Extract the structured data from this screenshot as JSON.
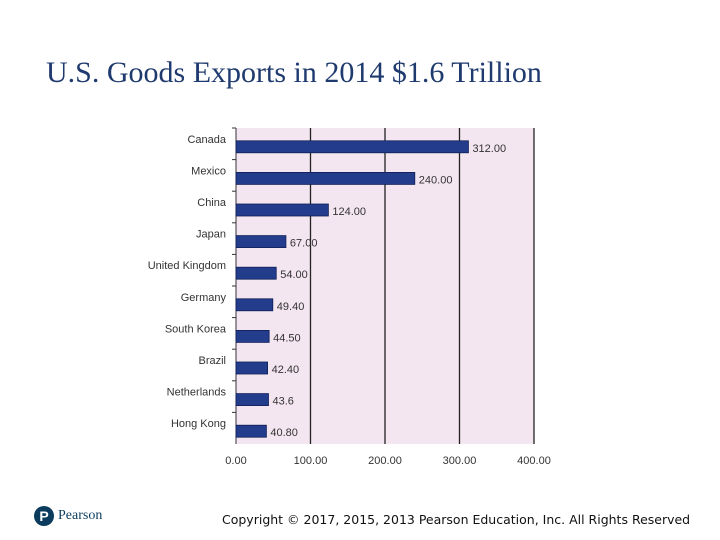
{
  "slide": {
    "title": "U.S. Goods Exports in 2014 $1.6 Trillion",
    "logo_text": "Pearson",
    "copyright": "Copyright © 2017, 2015, 2013 Pearson Education, Inc. All Rights Reserved"
  },
  "chart_data": {
    "type": "bar",
    "orientation": "horizontal",
    "categories": [
      "Canada",
      "Mexico",
      "China",
      "Japan",
      "United Kingdom",
      "Germany",
      "South Korea",
      "Brazil",
      "Netherlands",
      "Hong Kong"
    ],
    "values": [
      312.0,
      240.0,
      124.0,
      67.0,
      54.0,
      49.4,
      44.5,
      42.4,
      43.6,
      40.8
    ],
    "value_labels": [
      "312.00",
      "240.00",
      "124.00",
      "67.00",
      "54.00",
      "49.40",
      "44.50",
      "42.40",
      "43.6",
      "40.80"
    ],
    "x_ticks": [
      "0.00",
      "100.00",
      "200.00",
      "300.00",
      "400.00"
    ],
    "xlim": [
      0,
      400
    ],
    "grid": true,
    "title": "",
    "xlabel": "",
    "ylabel": "",
    "colors": {
      "bar": "#233c8c",
      "plot_background": "#f4e6f0",
      "gridline": "#222222"
    }
  }
}
